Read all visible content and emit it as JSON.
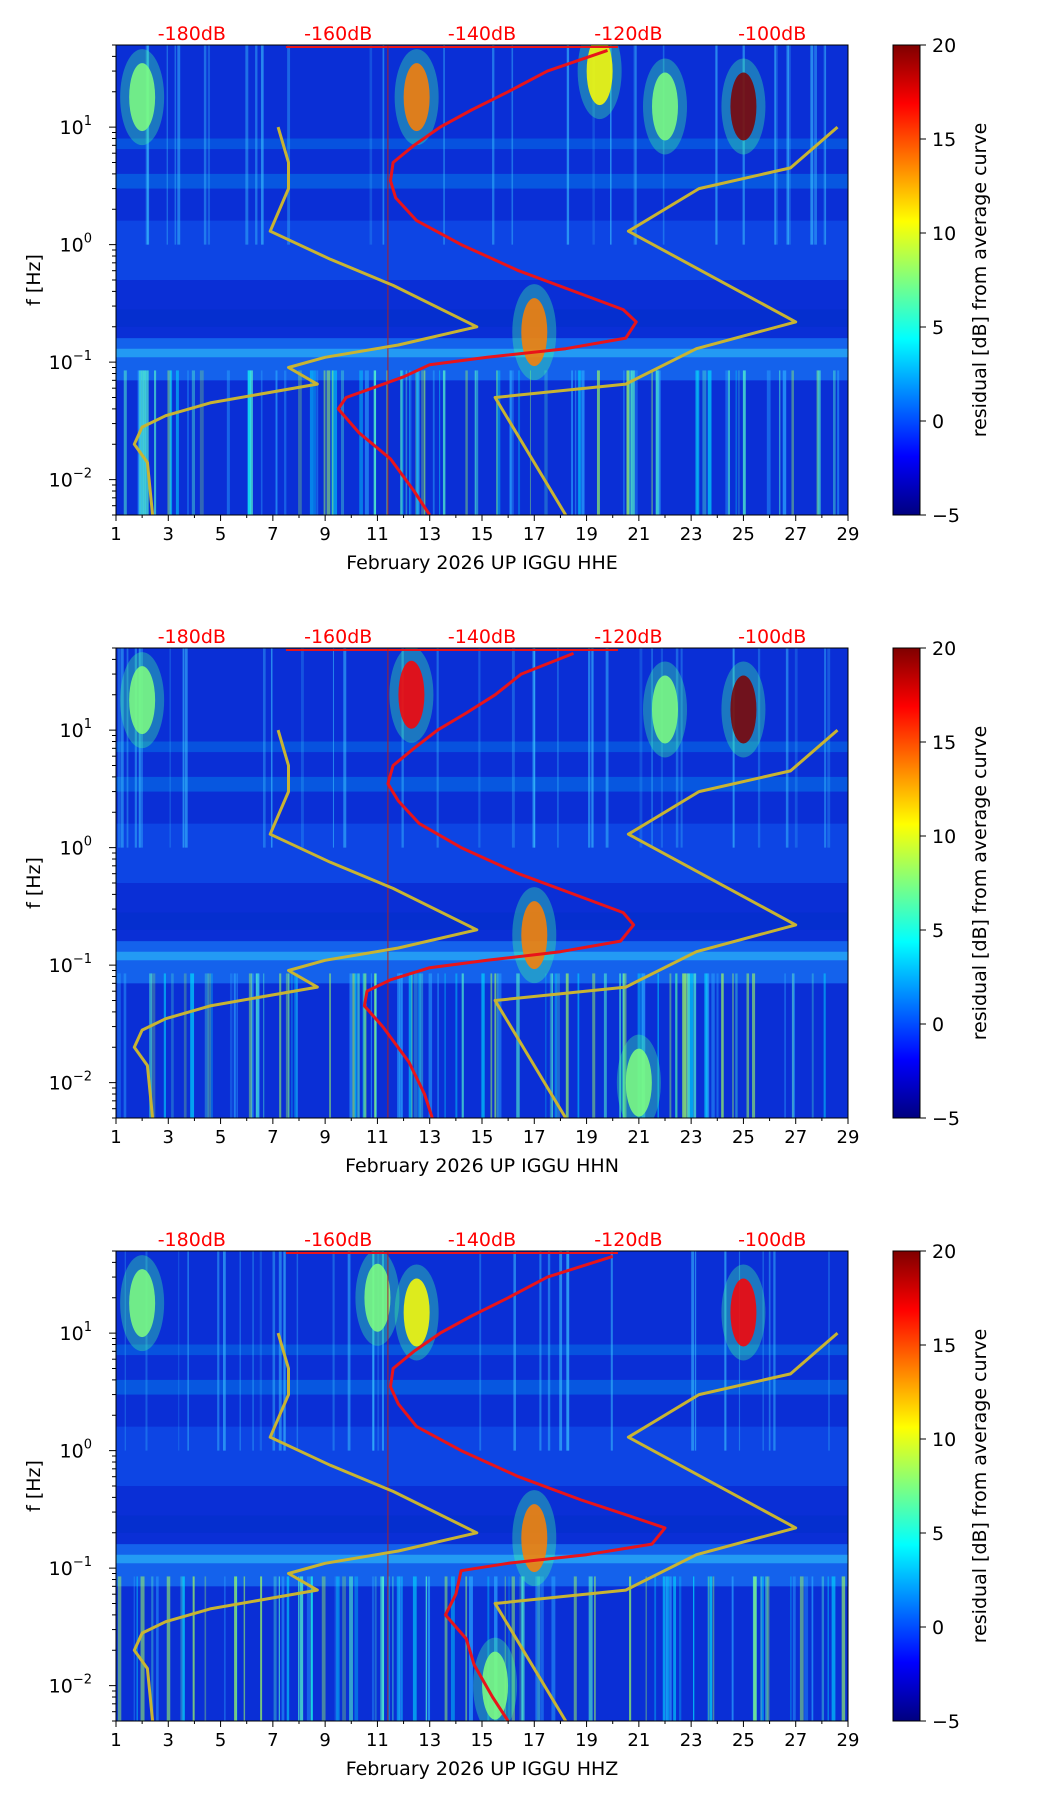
{
  "colorbar": {
    "label": "residual [dB] from average curve",
    "ticks": [
      "20",
      "15",
      "10",
      "5",
      "0",
      "−5"
    ],
    "range": [
      -5,
      20
    ],
    "colors": [
      "#00007f",
      "#0000ff",
      "#007fff",
      "#00ffff",
      "#7fff7f",
      "#ffff00",
      "#ff7f00",
      "#ff0000",
      "#7f0000"
    ]
  },
  "colors": {
    "background_field": "#0a2fd6",
    "red_curve": "#e8141a",
    "yellow_curve": "#c8b432",
    "top_label": "#ff0000"
  },
  "chart_data": [
    {
      "type": "heatmap",
      "title": "",
      "xlabel": "February 2026 UP IGGU  HHE",
      "ylabel": "f [Hz]",
      "xlim": [
        1,
        29
      ],
      "ylim": [
        0.005,
        50
      ],
      "yscale": "log",
      "x_ticks": [
        "1",
        "3",
        "5",
        "7",
        "9",
        "11",
        "13",
        "15",
        "17",
        "19",
        "21",
        "23",
        "25",
        "27",
        "29"
      ],
      "y_ticks": [
        {
          "value": 0.01,
          "base": "10",
          "exp": "−2"
        },
        {
          "value": 0.1,
          "base": "10",
          "exp": "−1"
        },
        {
          "value": 1,
          "base": "10",
          "exp": "0"
        },
        {
          "value": 10,
          "base": "10",
          "exp": "1"
        }
      ],
      "top_labels": [
        {
          "text": "-180dB",
          "x": 3.9
        },
        {
          "text": "-160dB",
          "x": 9.5
        },
        {
          "text": "-140dB",
          "x": 15.0
        },
        {
          "text": "-120dB",
          "x": 20.6
        },
        {
          "text": "-100dB",
          "x": 26.1
        }
      ],
      "hot_spots": [
        {
          "x": 12.5,
          "f": 18,
          "v": 15
        },
        {
          "x": 25.0,
          "f": 15,
          "v": 20
        },
        {
          "x": 17.0,
          "f": 0.18,
          "v": 14
        },
        {
          "x": 2.0,
          "f": 18,
          "v": 8
        },
        {
          "x": 22.0,
          "f": 15,
          "v": 8
        },
        {
          "x": 19.5,
          "f": 30,
          "v": 12
        }
      ],
      "red_curve": {
        "x": [
          19.8,
          17.5,
          16.0,
          14.6,
          13.4,
          12.4,
          11.6,
          11.5,
          11.7,
          12.5,
          14.2,
          16.4,
          18.8,
          20.4,
          20.9,
          20.5,
          18.2,
          15.2,
          13.0,
          12.0,
          10.8,
          9.8,
          9.5,
          10.3,
          11.5,
          12.4,
          13.0
        ],
        "f": [
          45,
          30,
          20,
          14,
          10,
          7,
          5,
          3.5,
          2.5,
          1.6,
          1.0,
          0.6,
          0.38,
          0.28,
          0.22,
          0.16,
          0.13,
          0.11,
          0.095,
          0.075,
          0.06,
          0.05,
          0.04,
          0.025,
          0.015,
          0.008,
          0.005
        ]
      },
      "yellow_left": {
        "x": [
          7.2,
          7.6,
          7.6,
          6.9,
          9.2,
          11.6,
          14.8,
          11.8,
          9.0,
          7.6,
          8.7,
          4.6,
          2.9,
          2.0,
          1.7,
          2.2,
          2.4
        ],
        "f": [
          10,
          5,
          3,
          1.3,
          0.75,
          0.45,
          0.2,
          0.14,
          0.11,
          0.09,
          0.065,
          0.045,
          0.035,
          0.028,
          0.02,
          0.014,
          0.005
        ]
      },
      "yellow_right": {
        "x": [
          28.6,
          26.8,
          23.3,
          20.6,
          27.0,
          23.2,
          20.5,
          15.5,
          18.2
        ],
        "f": [
          10,
          4.5,
          3,
          1.3,
          0.22,
          0.13,
          0.065,
          0.05,
          0.005
        ]
      }
    },
    {
      "type": "heatmap",
      "title": "",
      "xlabel": "February 2026 UP IGGU  HHN",
      "ylabel": "f [Hz]",
      "xlim": [
        1,
        29
      ],
      "ylim": [
        0.005,
        50
      ],
      "yscale": "log",
      "x_ticks": [
        "1",
        "3",
        "5",
        "7",
        "9",
        "11",
        "13",
        "15",
        "17",
        "19",
        "21",
        "23",
        "25",
        "27",
        "29"
      ],
      "y_ticks": [
        {
          "value": 0.01,
          "base": "10",
          "exp": "−2"
        },
        {
          "value": 0.1,
          "base": "10",
          "exp": "−1"
        },
        {
          "value": 1,
          "base": "10",
          "exp": "0"
        },
        {
          "value": 10,
          "base": "10",
          "exp": "1"
        }
      ],
      "top_labels": [
        {
          "text": "-180dB",
          "x": 3.9
        },
        {
          "text": "-160dB",
          "x": 9.5
        },
        {
          "text": "-140dB",
          "x": 15.0
        },
        {
          "text": "-120dB",
          "x": 20.6
        },
        {
          "text": "-100dB",
          "x": 26.1
        }
      ],
      "hot_spots": [
        {
          "x": 12.3,
          "f": 20,
          "v": 16
        },
        {
          "x": 25.0,
          "f": 15,
          "v": 20
        },
        {
          "x": 17.0,
          "f": 0.18,
          "v": 14
        },
        {
          "x": 2.0,
          "f": 18,
          "v": 8
        },
        {
          "x": 22.0,
          "f": 15,
          "v": 9
        },
        {
          "x": 21.0,
          "f": 0.01,
          "v": 9
        }
      ],
      "red_curve": {
        "x": [
          18.5,
          16.5,
          15.5,
          14.4,
          13.3,
          12.4,
          11.6,
          11.4,
          11.8,
          12.6,
          14.2,
          16.4,
          18.8,
          20.4,
          20.8,
          20.3,
          18.0,
          15.2,
          13.0,
          11.5,
          10.6,
          10.5,
          11.2,
          12.2,
          12.8,
          13.1
        ],
        "f": [
          45,
          30,
          20,
          14,
          10,
          7,
          5,
          3.5,
          2.5,
          1.6,
          1.0,
          0.6,
          0.38,
          0.28,
          0.22,
          0.16,
          0.13,
          0.11,
          0.095,
          0.075,
          0.06,
          0.045,
          0.03,
          0.015,
          0.008,
          0.005
        ]
      },
      "yellow_left": {
        "x": [
          7.2,
          7.6,
          7.6,
          6.9,
          9.2,
          11.6,
          14.8,
          11.8,
          9.0,
          7.6,
          8.7,
          4.6,
          2.9,
          2.0,
          1.7,
          2.2,
          2.4
        ],
        "f": [
          10,
          5,
          3,
          1.3,
          0.75,
          0.45,
          0.2,
          0.14,
          0.11,
          0.09,
          0.065,
          0.045,
          0.035,
          0.028,
          0.02,
          0.014,
          0.005
        ]
      },
      "yellow_right": {
        "x": [
          28.6,
          26.8,
          23.3,
          20.6,
          27.0,
          23.2,
          20.5,
          15.5,
          18.2
        ],
        "f": [
          10,
          4.5,
          3,
          1.3,
          0.22,
          0.13,
          0.065,
          0.05,
          0.005
        ]
      }
    },
    {
      "type": "heatmap",
      "title": "",
      "xlabel": "February 2026 UP IGGU  HHZ",
      "ylabel": "f [Hz]",
      "xlim": [
        1,
        29
      ],
      "ylim": [
        0.005,
        50
      ],
      "yscale": "log",
      "x_ticks": [
        "1",
        "3",
        "5",
        "7",
        "9",
        "11",
        "13",
        "15",
        "17",
        "19",
        "21",
        "23",
        "25",
        "27",
        "29"
      ],
      "y_ticks": [
        {
          "value": 0.01,
          "base": "10",
          "exp": "−2"
        },
        {
          "value": 0.1,
          "base": "10",
          "exp": "−1"
        },
        {
          "value": 1,
          "base": "10",
          "exp": "0"
        },
        {
          "value": 10,
          "base": "10",
          "exp": "1"
        }
      ],
      "top_labels": [
        {
          "text": "-180dB",
          "x": 3.9
        },
        {
          "text": "-160dB",
          "x": 9.5
        },
        {
          "text": "-140dB",
          "x": 15.0
        },
        {
          "text": "-120dB",
          "x": 20.6
        },
        {
          "text": "-100dB",
          "x": 26.1
        }
      ],
      "hot_spots": [
        {
          "x": 12.5,
          "f": 15,
          "v": 11
        },
        {
          "x": 25.0,
          "f": 15,
          "v": 18
        },
        {
          "x": 17.0,
          "f": 0.18,
          "v": 14
        },
        {
          "x": 2.0,
          "f": 18,
          "v": 8
        },
        {
          "x": 15.5,
          "f": 0.01,
          "v": 8
        },
        {
          "x": 11.0,
          "f": 20,
          "v": 9
        }
      ],
      "red_curve": {
        "x": [
          20.0,
          17.5,
          16.0,
          14.6,
          13.4,
          12.4,
          11.6,
          11.5,
          11.8,
          12.5,
          14.2,
          16.4,
          18.8,
          20.6,
          22.0,
          21.5,
          19.0,
          16.0,
          14.2,
          14.0,
          13.6,
          14.4,
          14.7,
          15.4,
          16.0
        ],
        "f": [
          45,
          30,
          20,
          14,
          10,
          7,
          5,
          3.5,
          2.5,
          1.6,
          1.0,
          0.6,
          0.38,
          0.28,
          0.22,
          0.16,
          0.13,
          0.11,
          0.095,
          0.06,
          0.04,
          0.025,
          0.015,
          0.008,
          0.005
        ]
      },
      "yellow_left": {
        "x": [
          7.2,
          7.6,
          7.6,
          6.9,
          9.2,
          11.6,
          14.8,
          11.8,
          9.0,
          7.6,
          8.7,
          4.6,
          2.9,
          2.0,
          1.7,
          2.2,
          2.4
        ],
        "f": [
          10,
          5,
          3,
          1.3,
          0.75,
          0.45,
          0.2,
          0.14,
          0.11,
          0.09,
          0.065,
          0.045,
          0.035,
          0.028,
          0.02,
          0.014,
          0.005
        ]
      },
      "yellow_right": {
        "x": [
          28.6,
          26.8,
          23.3,
          20.6,
          27.0,
          23.2,
          20.5,
          15.5,
          18.2
        ],
        "f": [
          10,
          4.5,
          3,
          1.3,
          0.22,
          0.13,
          0.065,
          0.05,
          0.005
        ]
      }
    }
  ]
}
